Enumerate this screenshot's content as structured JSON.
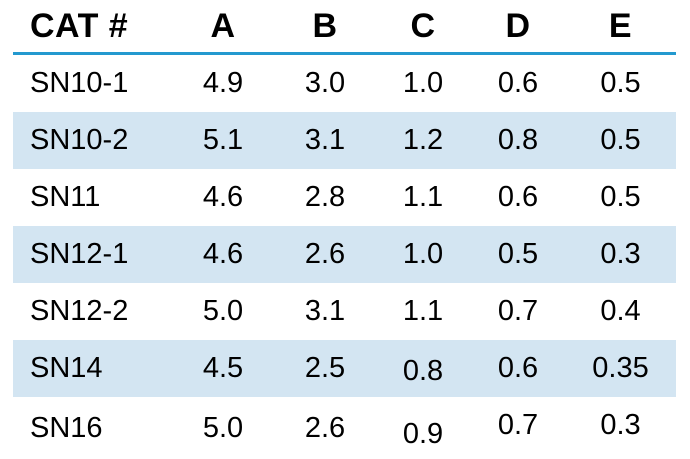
{
  "chart_data": {
    "type": "table",
    "title": "",
    "columns": [
      "CAT #",
      "A",
      "B",
      "C",
      "D",
      "E"
    ],
    "rows": [
      [
        "SN10-1",
        "4.9",
        "3.0",
        "1.0",
        "0.6",
        "0.5"
      ],
      [
        "SN10-2",
        "5.1",
        "3.1",
        "1.2",
        "0.8",
        "0.5"
      ],
      [
        "SN11",
        "4.6",
        "2.8",
        "1.1",
        "0.6",
        "0.5"
      ],
      [
        "SN12-1",
        "4.6",
        "2.6",
        "1.0",
        "0.5",
        "0.3"
      ],
      [
        "SN12-2",
        "5.0",
        "3.1",
        "1.1",
        "0.7",
        "0.4"
      ],
      [
        "SN14",
        "4.5",
        "2.5",
        "0.8",
        "0.6",
        "0.35"
      ],
      [
        "SN16",
        "5.0",
        "2.6",
        "0.9",
        "0.7",
        "0.3"
      ]
    ],
    "highlighted_rows": [
      1,
      3,
      5
    ],
    "colors": {
      "row_highlight": "#d3e5f2",
      "header_rule": "#2399cf",
      "text": "#000000",
      "background": "#ffffff"
    }
  }
}
